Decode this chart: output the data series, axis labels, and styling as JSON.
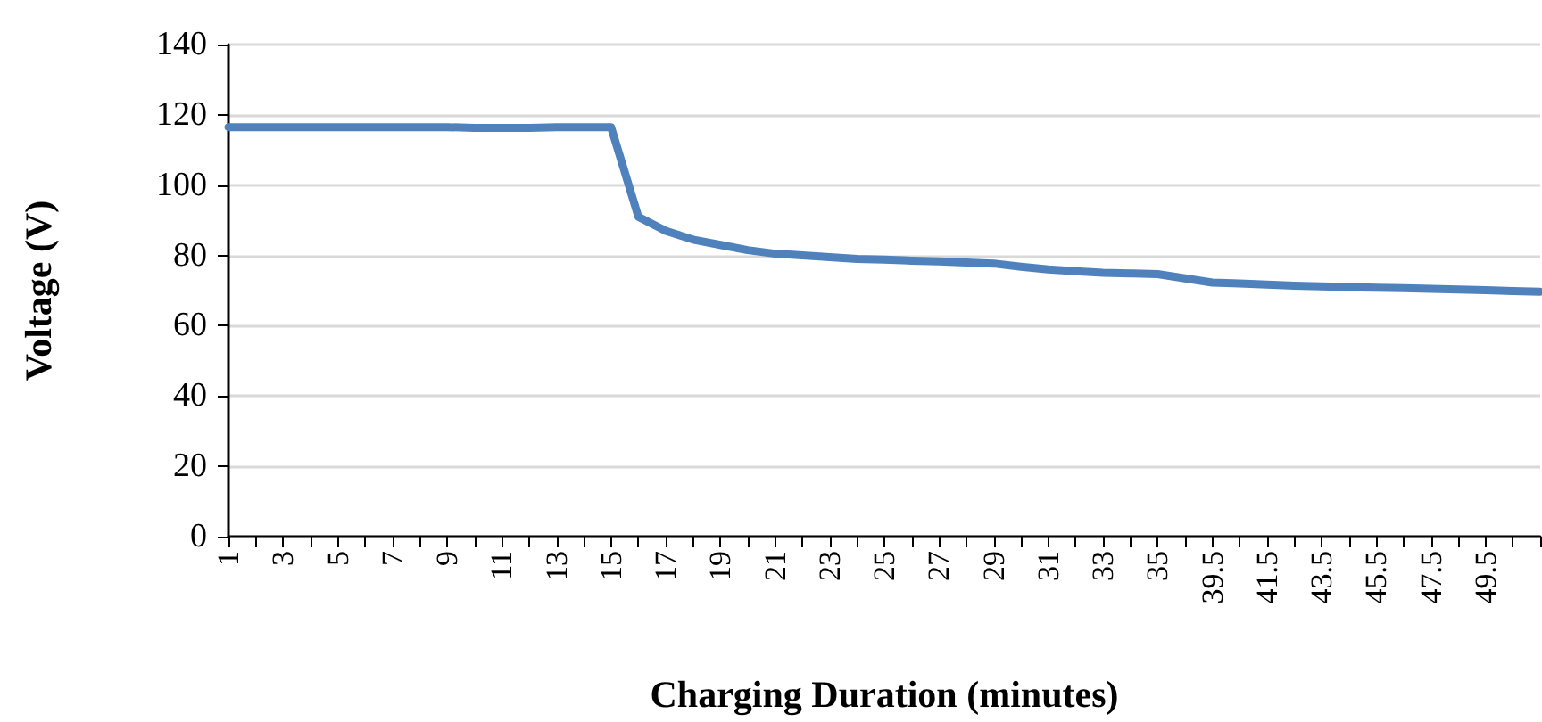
{
  "chart_data": {
    "type": "line",
    "xlabel": "Charging Duration (minutes)",
    "ylabel": "Voltage (V)",
    "categories": [
      "1",
      null,
      "3",
      null,
      "5",
      null,
      "7",
      null,
      "9",
      null,
      "11",
      null,
      "13",
      null,
      "15",
      null,
      "17",
      null,
      "19",
      null,
      "21",
      null,
      "23",
      null,
      "25",
      null,
      "27",
      null,
      "29",
      null,
      "31",
      null,
      "33",
      null,
      "35",
      null,
      "39.5",
      null,
      "41.5",
      null,
      "43.5",
      null,
      "45.5",
      null,
      "47.5",
      null,
      "49.5",
      null,
      null
    ],
    "series": [
      {
        "color": "#4f81bd",
        "values": [
          116.5,
          116.5,
          116.5,
          116.5,
          116.5,
          116.5,
          116.5,
          116.5,
          116.5,
          116.3,
          116.3,
          116.3,
          116.5,
          116.5,
          116.5,
          91,
          87,
          84.5,
          83,
          81.5,
          80.5,
          80,
          79.5,
          79,
          78.8,
          78.5,
          78.3,
          78,
          77.7,
          76.8,
          76,
          75.5,
          75.1,
          74.9,
          74.7,
          73.5,
          72.3,
          72,
          71.7,
          71.4,
          71.2,
          71,
          70.8,
          70.7,
          70.5,
          70.3,
          70.1,
          69.9,
          69.7
        ]
      }
    ],
    "ylim": [
      0,
      140
    ],
    "yticks": [
      0,
      20,
      40,
      60,
      80,
      100,
      120,
      140
    ],
    "grid": "y",
    "marker": "none",
    "line_style": "solid"
  }
}
